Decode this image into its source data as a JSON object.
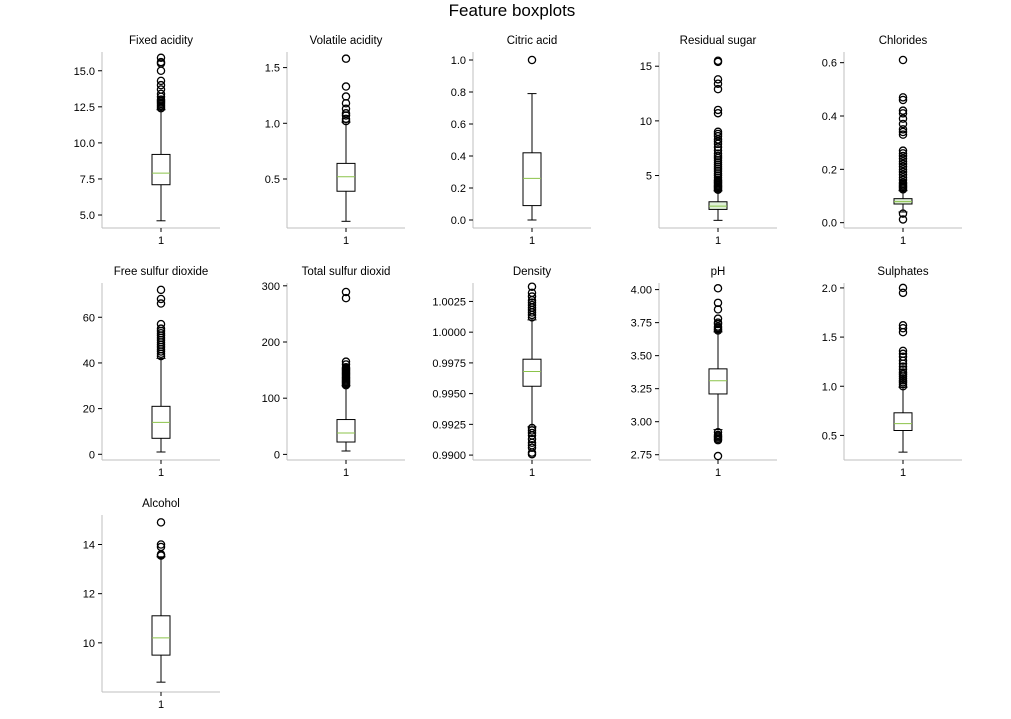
{
  "chart_data": {
    "type": "boxplot",
    "title": "Feature boxplots",
    "colors": {
      "box_fill": "#ffffff",
      "box_edge": "#000000",
      "median": "#8bc34a",
      "spine": "#bfbfbf"
    },
    "panels": [
      {
        "title": "Fixed acidity",
        "category": "1",
        "ylim": [
          4.1,
          16.3
        ],
        "yticks": [
          5.0,
          7.5,
          10.0,
          12.5,
          15.0
        ],
        "tick_labels": [
          "5.0",
          "7.5",
          "10.0",
          "12.5",
          "15.0"
        ],
        "whisker_low": 4.6,
        "q1": 7.1,
        "median": 7.9,
        "q3": 9.2,
        "whisker_high": 12.3,
        "fliers": [
          12.4,
          12.5,
          12.6,
          12.7,
          12.8,
          12.9,
          13.0,
          13.2,
          13.4,
          13.7,
          14.0,
          14.3,
          15.0,
          15.5,
          15.6,
          15.9
        ],
        "box_fill": "#ffffff"
      },
      {
        "title": "Volatile acidity",
        "category": "1",
        "ylim": [
          0.06,
          1.64
        ],
        "yticks": [
          0.5,
          1.0,
          1.5
        ],
        "tick_labels": [
          "0.5",
          "1.0",
          "1.5"
        ],
        "whisker_low": 0.12,
        "q1": 0.39,
        "median": 0.52,
        "q3": 0.64,
        "whisker_high": 1.01,
        "fliers": [
          1.02,
          1.04,
          1.07,
          1.09,
          1.13,
          1.18,
          1.24,
          1.33,
          1.58
        ],
        "box_fill": "#ffffff"
      },
      {
        "title": "Citric acid",
        "category": "1",
        "ylim": [
          -0.05,
          1.05
        ],
        "yticks": [
          0.0,
          0.2,
          0.4,
          0.6,
          0.8,
          1.0
        ],
        "tick_labels": [
          "0.0",
          "0.2",
          "0.4",
          "0.6",
          "0.8",
          "1.0"
        ],
        "whisker_low": 0.0,
        "q1": 0.09,
        "median": 0.26,
        "q3": 0.42,
        "whisker_high": 0.79,
        "fliers": [
          1.0
        ],
        "box_fill": "#ffffff"
      },
      {
        "title": "Residual sugar",
        "category": "1",
        "ylim": [
          0.2,
          16.3
        ],
        "yticks": [
          5,
          10,
          15
        ],
        "tick_labels": [
          "5",
          "10",
          "15"
        ],
        "whisker_low": 0.9,
        "q1": 1.9,
        "median": 2.2,
        "q3": 2.6,
        "whisker_high": 3.6,
        "fliers": [
          3.7,
          3.8,
          3.9,
          4.0,
          4.1,
          4.2,
          4.3,
          4.4,
          4.5,
          4.6,
          4.8,
          5.0,
          5.2,
          5.4,
          5.6,
          5.8,
          6.0,
          6.2,
          6.4,
          6.6,
          6.8,
          7.0,
          7.3,
          7.6,
          7.9,
          8.1,
          8.3,
          8.6,
          8.8,
          9.0,
          10.7,
          11.0,
          12.9,
          13.4,
          13.8,
          15.4,
          15.5
        ],
        "box_fill": "#dff0d8"
      },
      {
        "title": "Chlorides",
        "category": "1",
        "ylim": [
          -0.02,
          0.64
        ],
        "yticks": [
          0.0,
          0.2,
          0.4,
          0.6
        ],
        "tick_labels": [
          "0.0",
          "0.2",
          "0.4",
          "0.6"
        ],
        "whisker_low": 0.04,
        "q1": 0.07,
        "median": 0.079,
        "q3": 0.09,
        "whisker_high": 0.12,
        "fliers": [
          0.012,
          0.034,
          0.125,
          0.13,
          0.135,
          0.14,
          0.145,
          0.15,
          0.16,
          0.17,
          0.18,
          0.19,
          0.2,
          0.21,
          0.22,
          0.23,
          0.24,
          0.25,
          0.26,
          0.27,
          0.33,
          0.34,
          0.35,
          0.37,
          0.39,
          0.41,
          0.42,
          0.46,
          0.47,
          0.61
        ],
        "box_fill": "#dff0d8"
      },
      {
        "title": "Free sulfur dioxide",
        "category": "1",
        "ylim": [
          -2.5,
          75
        ],
        "yticks": [
          0,
          20,
          40,
          60
        ],
        "tick_labels": [
          "0",
          "20",
          "40",
          "60"
        ],
        "whisker_low": 1,
        "q1": 7,
        "median": 14,
        "q3": 21,
        "whisker_high": 42,
        "fliers": [
          43,
          44,
          45,
          46,
          47,
          48,
          49,
          50,
          51,
          52,
          53,
          54,
          55,
          57,
          66,
          68,
          72
        ],
        "box_fill": "#ffffff"
      },
      {
        "title": "Total sulfur dioxid",
        "category": "1",
        "ylim": [
          -10,
          305
        ],
        "yticks": [
          0,
          100,
          200,
          300
        ],
        "tick_labels": [
          "0",
          "100",
          "200",
          "300"
        ],
        "whisker_low": 6,
        "q1": 22,
        "median": 38,
        "q3": 62,
        "whisker_high": 122,
        "fliers": [
          123,
          125,
          127,
          129,
          131,
          133,
          135,
          137,
          139,
          141,
          143,
          145,
          147,
          149,
          151,
          153,
          155,
          160,
          165,
          278,
          289
        ],
        "box_fill": "#ffffff"
      },
      {
        "title": "Density",
        "category": "1",
        "ylim": [
          0.9896,
          1.004
        ],
        "yticks": [
          0.99,
          0.9925,
          0.995,
          0.9975,
          1.0,
          1.0025
        ],
        "tick_labels": [
          "0.9900",
          "0.9925",
          "0.9950",
          "0.9975",
          "1.0000",
          "1.0025"
        ],
        "whisker_low": 0.9923,
        "q1": 0.9956,
        "median": 0.9968,
        "q3": 0.9978,
        "whisker_high": 1.001,
        "fliers": [
          0.99007,
          0.9902,
          0.9906,
          0.9908,
          0.991,
          0.9913,
          0.9916,
          0.9918,
          0.992,
          0.9922,
          1.0012,
          1.0014,
          1.0016,
          1.0018,
          1.002,
          1.0022,
          1.0024,
          1.0026,
          1.0029,
          1.0032,
          1.0037
        ],
        "box_fill": "#ffffff"
      },
      {
        "title": "pH",
        "category": "1",
        "ylim": [
          2.71,
          4.05
        ],
        "yticks": [
          2.75,
          3.0,
          3.25,
          3.5,
          3.75,
          4.0
        ],
        "tick_labels": [
          "2.75",
          "3.00",
          "3.25",
          "3.50",
          "3.75",
          "4.00"
        ],
        "whisker_low": 2.94,
        "q1": 3.21,
        "median": 3.31,
        "q3": 3.4,
        "whisker_high": 3.68,
        "fliers": [
          2.74,
          2.86,
          2.87,
          2.88,
          2.89,
          2.9,
          2.92,
          3.69,
          3.7,
          3.71,
          3.72,
          3.74,
          3.75,
          3.78,
          3.85,
          3.9,
          4.01
        ],
        "box_fill": "#ffffff"
      },
      {
        "title": "Sulphates",
        "category": "1",
        "ylim": [
          0.25,
          2.05
        ],
        "yticks": [
          0.5,
          1.0,
          1.5,
          2.0
        ],
        "tick_labels": [
          "0.5",
          "1.0",
          "1.5",
          "2.0"
        ],
        "whisker_low": 0.33,
        "q1": 0.55,
        "median": 0.62,
        "q3": 0.73,
        "whisker_high": 0.99,
        "fliers": [
          1.0,
          1.02,
          1.04,
          1.06,
          1.08,
          1.1,
          1.12,
          1.14,
          1.17,
          1.2,
          1.23,
          1.26,
          1.3,
          1.33,
          1.36,
          1.55,
          1.59,
          1.62,
          1.95,
          2.0
        ],
        "box_fill": "#ffffff"
      },
      {
        "title": "Alcohol",
        "category": "1",
        "ylim": [
          8.0,
          15.2
        ],
        "yticks": [
          10,
          12,
          14
        ],
        "tick_labels": [
          "10",
          "12",
          "14"
        ],
        "whisker_low": 8.4,
        "q1": 9.5,
        "median": 10.2,
        "q3": 11.1,
        "whisker_high": 13.5,
        "fliers": [
          13.55,
          13.6,
          13.9,
          14.0,
          14.9
        ],
        "box_fill": "#ffffff"
      }
    ]
  }
}
